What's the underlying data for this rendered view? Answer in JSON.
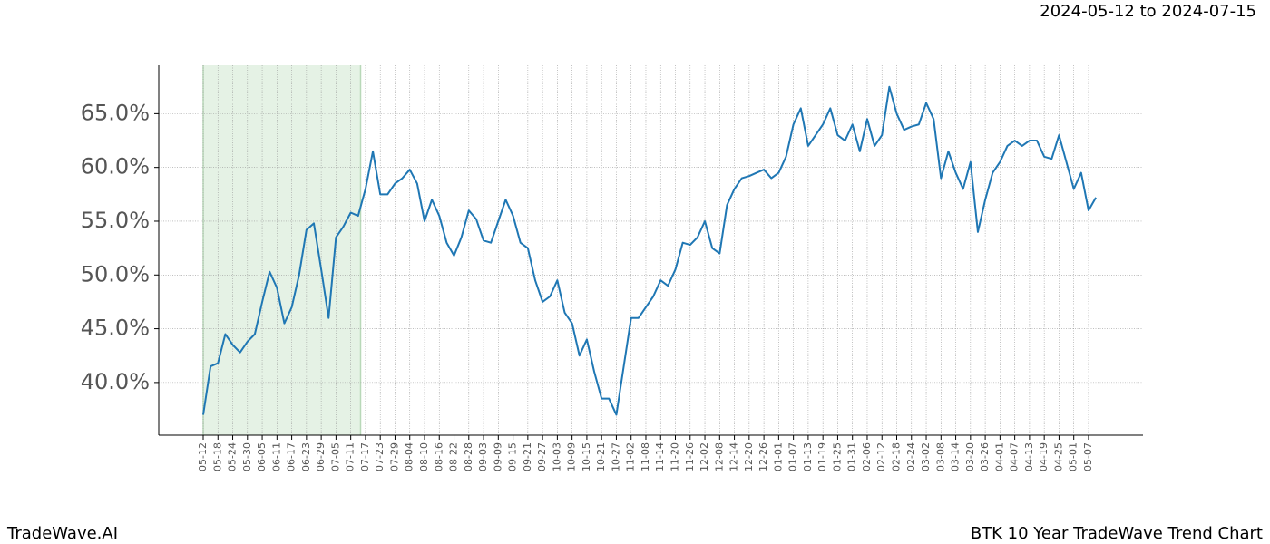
{
  "header": "2024-05-12 to 2024-07-15",
  "footer_left": "TradeWave.AI",
  "footer_right": "BTK 10 Year TradeWave Trend Chart",
  "chart_data": {
    "type": "line",
    "x": [
      "05-12",
      "05-15",
      "05-18",
      "05-21",
      "05-24",
      "05-27",
      "05-30",
      "06-02",
      "06-05",
      "06-08",
      "06-11",
      "06-14",
      "06-17",
      "06-20",
      "06-23",
      "06-26",
      "06-29",
      "07-02",
      "07-05",
      "07-08",
      "07-11",
      "07-14",
      "07-17",
      "07-20",
      "07-23",
      "07-26",
      "07-29",
      "08-01",
      "08-04",
      "08-07",
      "08-10",
      "08-13",
      "08-16",
      "08-19",
      "08-22",
      "08-25",
      "08-28",
      "08-31",
      "09-03",
      "09-06",
      "09-09",
      "09-12",
      "09-15",
      "09-18",
      "09-21",
      "09-24",
      "09-27",
      "09-30",
      "10-03",
      "10-06",
      "10-09",
      "10-12",
      "10-15",
      "10-18",
      "10-21",
      "10-24",
      "10-27",
      "10-30",
      "11-02",
      "11-05",
      "11-08",
      "11-11",
      "11-14",
      "11-17",
      "11-20",
      "11-23",
      "11-26",
      "11-29",
      "12-02",
      "12-05",
      "12-08",
      "12-11",
      "12-14",
      "12-17",
      "12-20",
      "12-23",
      "12-26",
      "12-29",
      "01-01",
      "01-04",
      "01-07",
      "01-10",
      "01-13",
      "01-16",
      "01-19",
      "01-22",
      "01-25",
      "01-28",
      "01-31",
      "02-03",
      "02-06",
      "02-09",
      "02-12",
      "02-15",
      "02-18",
      "02-21",
      "02-24",
      "02-27",
      "03-02",
      "03-05",
      "03-08",
      "03-11",
      "03-14",
      "03-17",
      "03-20",
      "03-23",
      "03-26",
      "03-29",
      "04-01",
      "04-04",
      "04-07",
      "04-10",
      "04-13",
      "04-16",
      "04-19",
      "04-22",
      "04-25",
      "04-28",
      "05-01",
      "05-04",
      "05-07",
      "05-10"
    ],
    "series": [
      {
        "color": "#1f77b4",
        "values": [
          37.0,
          41.5,
          41.8,
          44.5,
          43.5,
          42.8,
          43.8,
          44.5,
          47.5,
          50.3,
          48.8,
          45.5,
          47.0,
          50.0,
          54.2,
          54.8,
          50.5,
          46.0,
          53.5,
          54.5,
          55.8,
          55.5,
          58.0,
          61.5,
          57.5,
          57.5,
          58.5,
          59.0,
          59.8,
          58.5,
          55.0,
          57.0,
          55.5,
          53.0,
          51.8,
          53.5,
          56.0,
          55.2,
          53.2,
          53.0,
          55.0,
          57.0,
          55.5,
          53.0,
          52.5,
          49.5,
          47.5,
          48.0,
          49.5,
          46.5,
          45.5,
          42.5,
          44.0,
          41.0,
          38.5,
          38.5,
          37.0,
          41.5,
          46.0,
          46.0,
          47.0,
          48.0,
          49.5,
          49.0,
          50.5,
          53.0,
          52.8,
          53.5,
          55.0,
          52.5,
          52.0,
          56.5,
          58.0,
          59.0,
          59.2,
          59.5,
          59.8,
          59.0,
          59.5,
          61.0,
          64.0,
          65.5,
          62.0,
          63.0,
          64.0,
          65.5,
          63.0,
          62.5,
          64.0,
          61.5,
          64.5,
          62.0,
          63.0,
          67.5,
          65.0,
          63.5,
          63.8,
          64.0,
          66.0,
          64.5,
          59.0,
          61.5,
          59.5,
          58.0,
          60.5,
          54.0,
          57.0,
          59.5,
          60.5,
          62.0,
          62.5,
          62.0,
          62.5,
          62.5,
          61.0,
          60.8,
          63.0,
          60.5,
          58.0,
          59.5,
          56.0,
          57.2
        ]
      }
    ],
    "xticks": [
      "05-12",
      "05-18",
      "05-24",
      "05-30",
      "06-05",
      "06-11",
      "06-17",
      "06-23",
      "06-29",
      "07-05",
      "07-11",
      "07-17",
      "07-23",
      "07-29",
      "08-04",
      "08-10",
      "08-16",
      "08-22",
      "08-28",
      "09-03",
      "09-09",
      "09-15",
      "09-21",
      "09-27",
      "10-03",
      "10-09",
      "10-15",
      "10-21",
      "10-27",
      "11-02",
      "11-08",
      "11-14",
      "11-20",
      "11-26",
      "12-02",
      "12-08",
      "12-14",
      "12-20",
      "12-26",
      "01-01",
      "01-07",
      "01-13",
      "01-19",
      "01-25",
      "01-31",
      "02-06",
      "02-12",
      "02-18",
      "02-24",
      "03-02",
      "03-08",
      "03-14",
      "03-20",
      "03-26",
      "04-01",
      "04-07",
      "04-13",
      "04-19",
      "04-25",
      "05-01",
      "05-07"
    ],
    "ylim": [
      35.1,
      69.5
    ],
    "yticks": [
      {
        "value": 40,
        "label": "40.0%"
      },
      {
        "value": 45,
        "label": "45.0%"
      },
      {
        "value": 50,
        "label": "50.0%"
      },
      {
        "value": 55,
        "label": "55.0%"
      },
      {
        "value": 60,
        "label": "60.0%"
      },
      {
        "value": 65,
        "label": "65.0%"
      }
    ],
    "grid": true,
    "highlight": {
      "start": "05-12",
      "end": "07-14",
      "color": "#e5f2e5",
      "edge": "#b8d8b8"
    }
  }
}
